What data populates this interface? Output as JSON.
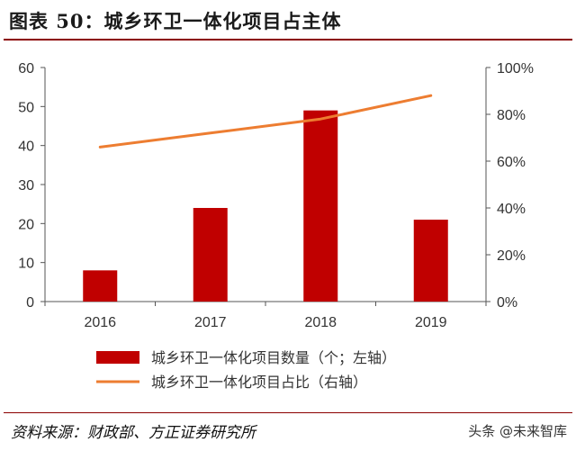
{
  "header": {
    "title": "图表 50：城乡环卫一体化项目占主体"
  },
  "footer": {
    "source": "资料来源：财政部、方正证券研究所",
    "watermark": "头条 @未来智库"
  },
  "chart_data": {
    "type": "bar",
    "categories": [
      "2016",
      "2017",
      "2018",
      "2019"
    ],
    "series": [
      {
        "name": "城乡环卫一体化项目数量（个；左轴）",
        "type": "bar",
        "axis": "left",
        "color": "#c00000",
        "values": [
          8,
          24,
          49,
          21
        ]
      },
      {
        "name": "城乡环卫一体化项目占比（右轴）",
        "type": "line",
        "axis": "right",
        "color": "#ed7d31",
        "values": [
          66,
          72,
          78,
          88
        ]
      }
    ],
    "y_left": {
      "min": 0,
      "max": 60,
      "ticks": [
        "0",
        "10",
        "20",
        "30",
        "40",
        "50",
        "60"
      ]
    },
    "y_right": {
      "min": 0,
      "max": 100,
      "ticks": [
        "0%",
        "20%",
        "40%",
        "60%",
        "80%",
        "100%"
      ]
    },
    "grid": false,
    "legend_position": "bottom"
  }
}
